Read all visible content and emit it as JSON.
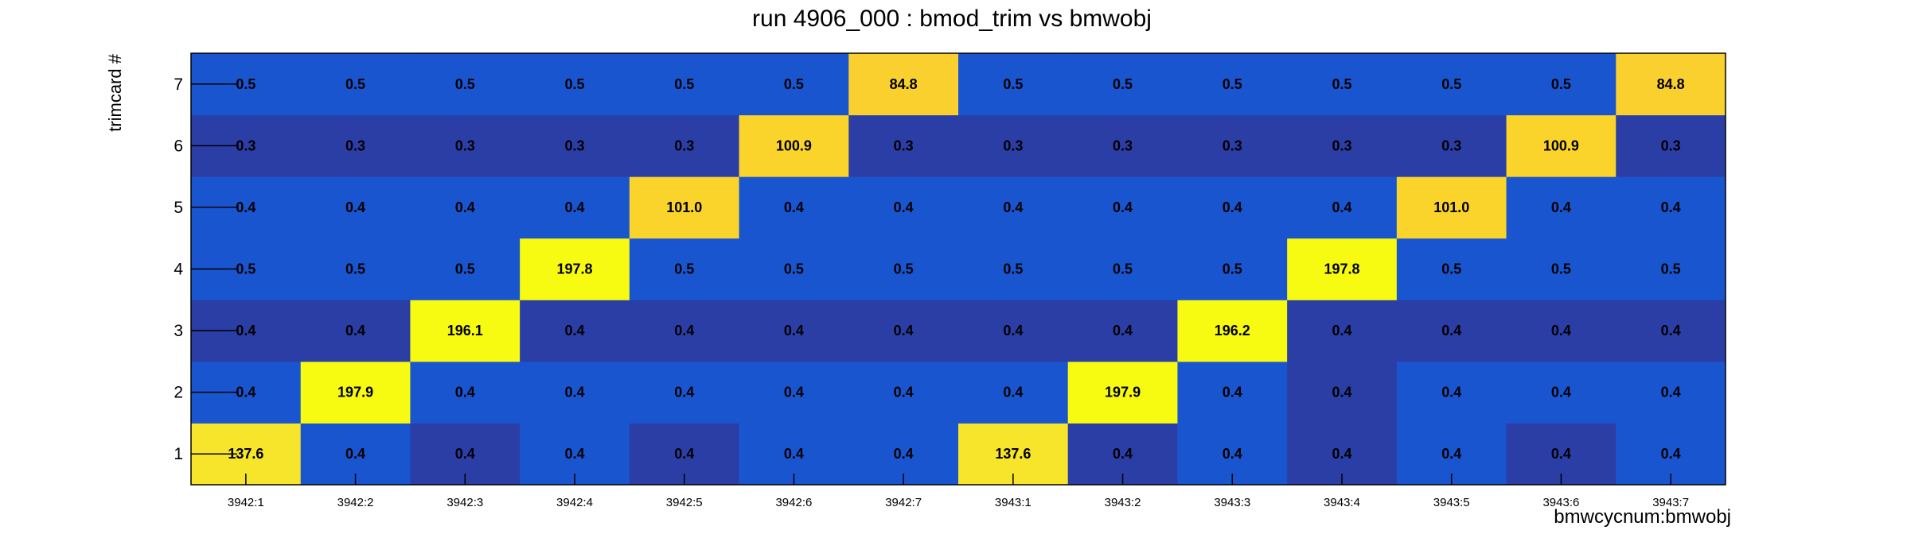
{
  "chart_data": {
    "type": "heatmap",
    "title": "run 4906_000 : bmod_trim vs bmwobj",
    "xlabel": "bmwcycnum:bmwobj",
    "ylabel": "trimcard #",
    "x_categories": [
      "3942:1",
      "3942:2",
      "3942:3",
      "3942:4",
      "3942:5",
      "3942:6",
      "3942:7",
      "3943:1",
      "3943:2",
      "3943:3",
      "3943:4",
      "3943:5",
      "3943:6",
      "3943:7"
    ],
    "y_categories": [
      "1",
      "2",
      "3",
      "4",
      "5",
      "6",
      "7"
    ],
    "cells": [
      [
        "137.6",
        "0.4",
        "0.4",
        "0.4",
        "0.4",
        "0.4",
        "0.4",
        "137.6",
        "0.4",
        "0.4",
        "0.4",
        "0.4",
        "0.4",
        "0.4"
      ],
      [
        "0.4",
        "197.9",
        "0.4",
        "0.4",
        "0.4",
        "0.4",
        "0.4",
        "0.4",
        "197.9",
        "0.4",
        "0.4",
        "0.4",
        "0.4",
        "0.4"
      ],
      [
        "0.4",
        "0.4",
        "196.1",
        "0.4",
        "0.4",
        "0.4",
        "0.4",
        "0.4",
        "0.4",
        "196.2",
        "0.4",
        "0.4",
        "0.4",
        "0.4"
      ],
      [
        "0.5",
        "0.5",
        "0.5",
        "197.8",
        "0.5",
        "0.5",
        "0.5",
        "0.5",
        "0.5",
        "0.5",
        "197.8",
        "0.5",
        "0.5",
        "0.5"
      ],
      [
        "0.4",
        "0.4",
        "0.4",
        "0.4",
        "101.0",
        "0.4",
        "0.4",
        "0.4",
        "0.4",
        "0.4",
        "0.4",
        "101.0",
        "0.4",
        "0.4"
      ],
      [
        "0.3",
        "0.3",
        "0.3",
        "0.3",
        "0.3",
        "100.9",
        "0.3",
        "0.3",
        "0.3",
        "0.3",
        "0.3",
        "0.3",
        "100.9",
        "0.3"
      ],
      [
        "0.5",
        "0.5",
        "0.5",
        "0.5",
        "0.5",
        "0.5",
        "84.8",
        "0.5",
        "0.5",
        "0.5",
        "0.5",
        "0.5",
        "0.5",
        "84.8"
      ]
    ],
    "cell_colors": [
      [
        "#f6e52a",
        "#1a55d0",
        "#2a3ea6",
        "#1a55d0",
        "#2a3ea6",
        "#1a55d0",
        "#1a55d0",
        "#f6e52a",
        "#2a3ea6",
        "#1a55d0",
        "#2a3ea6",
        "#1a55d0",
        "#2a3ea6",
        "#1a55d0"
      ],
      [
        "#1a55d0",
        "#f7fa11",
        "#1a55d0",
        "#1a55d0",
        "#1a55d0",
        "#1a55d0",
        "#1a55d0",
        "#1a55d0",
        "#f7fa11",
        "#1a55d0",
        "#2a3ea6",
        "#1a55d0",
        "#1a55d0",
        "#1a55d0"
      ],
      [
        "#2a3ea6",
        "#2a3ea6",
        "#f7fa11",
        "#2a3ea6",
        "#2a3ea6",
        "#2a3ea6",
        "#2a3ea6",
        "#2a3ea6",
        "#2a3ea6",
        "#f7fa11",
        "#2a3ea6",
        "#2a3ea6",
        "#2a3ea6",
        "#2a3ea6"
      ],
      [
        "#1a55d0",
        "#1a55d0",
        "#1a55d0",
        "#f7fa11",
        "#1a55d0",
        "#1a55d0",
        "#1a55d0",
        "#1a55d0",
        "#1a55d0",
        "#1a55d0",
        "#f7fa11",
        "#1a55d0",
        "#1a55d0",
        "#1a55d0"
      ],
      [
        "#1a55d0",
        "#1a55d0",
        "#1a55d0",
        "#1a55d0",
        "#fad42b",
        "#1a55d0",
        "#1a55d0",
        "#1a55d0",
        "#1a55d0",
        "#1a55d0",
        "#1a55d0",
        "#fad42b",
        "#1a55d0",
        "#1a55d0"
      ],
      [
        "#2a3ea6",
        "#2a3ea6",
        "#2a3ea6",
        "#2a3ea6",
        "#2a3ea6",
        "#fad42b",
        "#2a3ea6",
        "#2a3ea6",
        "#2a3ea6",
        "#2a3ea6",
        "#2a3ea6",
        "#2a3ea6",
        "#fad42b",
        "#2a3ea6"
      ],
      [
        "#1a55d0",
        "#1a55d0",
        "#1a55d0",
        "#1a55d0",
        "#1a55d0",
        "#1a55d0",
        "#fad02e",
        "#1a55d0",
        "#1a55d0",
        "#1a55d0",
        "#1a55d0",
        "#1a55d0",
        "#1a55d0",
        "#fad02e"
      ]
    ],
    "grid": false,
    "legend": "none"
  }
}
